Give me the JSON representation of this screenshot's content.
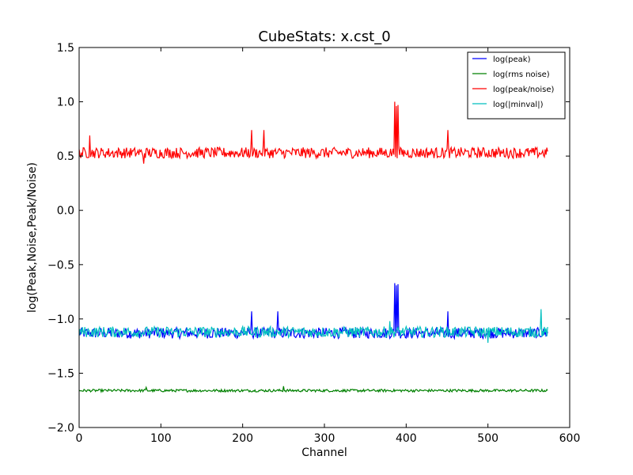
{
  "chart_data": {
    "type": "line",
    "title": "CubeStats: x.cst_0",
    "xlabel": "Channel",
    "ylabel": "log(Peak,Noise,Peak/Noise)",
    "xlim": [
      0,
      600
    ],
    "ylim": [
      -2.0,
      1.5
    ],
    "xticks": [
      0,
      100,
      200,
      300,
      400,
      500,
      600
    ],
    "xtick_labels": [
      "0",
      "100",
      "200",
      "300",
      "400",
      "500",
      "600"
    ],
    "yticks": [
      -2.0,
      -1.5,
      -1.0,
      -0.5,
      0.0,
      0.5,
      1.0,
      1.5
    ],
    "ytick_labels": [
      "−2.0",
      "−1.5",
      "−1.0",
      "−0.5",
      "0.0",
      "0.5",
      "1.0",
      "1.5"
    ],
    "grid": false,
    "legend_position": "top-right",
    "n_channels": 574,
    "series": [
      {
        "name": "log(peak)",
        "color": "#0000ff",
        "baseline": -1.13,
        "noise": 0.05,
        "features": [
          {
            "x": 386,
            "y": -0.67
          },
          {
            "x": 388,
            "y": -0.69
          },
          {
            "x": 390,
            "y": -0.68
          },
          {
            "x": 211,
            "y": -0.93
          },
          {
            "x": 451,
            "y": -0.93
          },
          {
            "x": 243,
            "y": -0.93
          }
        ]
      },
      {
        "name": "log(rms noise)",
        "color": "#008000",
        "baseline": -1.66,
        "noise": 0.012,
        "features": [
          {
            "x": 250,
            "y": -1.62
          },
          {
            "x": 82,
            "y": -1.63
          }
        ]
      },
      {
        "name": "log(peak/noise)",
        "color": "#ff0000",
        "baseline": 0.53,
        "noise": 0.05,
        "features": [
          {
            "x": 386,
            "y": 1.0
          },
          {
            "x": 388,
            "y": 0.96
          },
          {
            "x": 390,
            "y": 0.97
          },
          {
            "x": 211,
            "y": 0.74
          },
          {
            "x": 226,
            "y": 0.74
          },
          {
            "x": 451,
            "y": 0.74
          },
          {
            "x": 13,
            "y": 0.69
          },
          {
            "x": 79,
            "y": 0.43
          }
        ]
      },
      {
        "name": "log(|minval|)",
        "color": "#00bfbf",
        "baseline": -1.12,
        "noise": 0.05,
        "features": [
          {
            "x": 565,
            "y": -0.91
          },
          {
            "x": 380,
            "y": -1.02
          },
          {
            "x": 500,
            "y": -1.22
          }
        ]
      }
    ]
  }
}
